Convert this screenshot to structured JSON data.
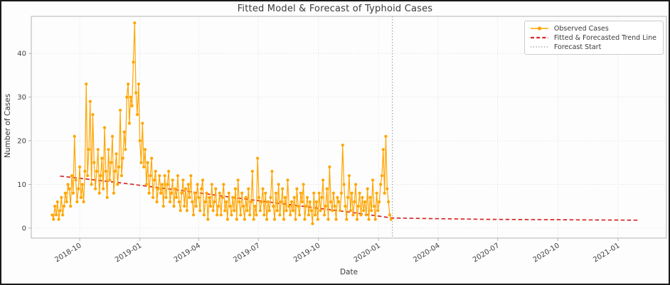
{
  "chart_data": {
    "type": "line",
    "title": "Fitted Model & Forecast of Typhoid Cases",
    "xlabel": "Date",
    "ylabel": "Number of Cases",
    "grid": "dotted",
    "legend_position": "upper right",
    "x_epoch": "2018-10-01",
    "xlim_days": [
      -74,
      897
    ],
    "ylim": [
      -2.3,
      48.5
    ],
    "y_ticks": [
      0,
      10,
      20,
      30,
      40
    ],
    "x_ticks": {
      "days": [
        0,
        92,
        182,
        273,
        365,
        457,
        548,
        639,
        731,
        823
      ],
      "labels": [
        "2018-10",
        "2019-01",
        "2019-04",
        "2019-07",
        "2019-10",
        "2020-01",
        "2020-04",
        "2020-07",
        "2020-10",
        "2021-01"
      ]
    },
    "series": [
      {
        "name": "Observed Cases",
        "kind": "line+markers",
        "color": "#FFA500",
        "start_date": "2018-08-20",
        "start_day": -42,
        "step_days": 2,
        "values": [
          3,
          2,
          5,
          3,
          6,
          2,
          4,
          7,
          3,
          5,
          8,
          6,
          10,
          9,
          5,
          12,
          8,
          21,
          11,
          6,
          9,
          14,
          7,
          10,
          6,
          13,
          33,
          12,
          18,
          29,
          10,
          26,
          15,
          9,
          13,
          18,
          8,
          12,
          16,
          9,
          23,
          13,
          7,
          18,
          11,
          15,
          21,
          8,
          13,
          17,
          10,
          14,
          27,
          12,
          16,
          22,
          18,
          30,
          33,
          24,
          30,
          28,
          38,
          47,
          31,
          26,
          33,
          20,
          15,
          24,
          14,
          18,
          10,
          15,
          8,
          12,
          16,
          7,
          11,
          13,
          6,
          9,
          12,
          8,
          10,
          5,
          12,
          7,
          10,
          13,
          6,
          8,
          11,
          5,
          9,
          7,
          12,
          6,
          4,
          8,
          11,
          5,
          9,
          4,
          10,
          7,
          12,
          6,
          3,
          8,
          5,
          10,
          7,
          4,
          9,
          11,
          3,
          6,
          8,
          2,
          7,
          5,
          10,
          4,
          6,
          9,
          3,
          5,
          8,
          3,
          7,
          10,
          4,
          6,
          2,
          8,
          5,
          3,
          7,
          4,
          9,
          2,
          11,
          6,
          3,
          8,
          5,
          2,
          7,
          4,
          9,
          3,
          6,
          13,
          2,
          5,
          3,
          16,
          7,
          4,
          6,
          9,
          3,
          8,
          2,
          6,
          4,
          7,
          13,
          5,
          2,
          8,
          4,
          10,
          3,
          6,
          9,
          2,
          7,
          4,
          11,
          5,
          3,
          6,
          4,
          7,
          2,
          9,
          5,
          3,
          8,
          6,
          10,
          2,
          5,
          7,
          3,
          6,
          4,
          1,
          8,
          3,
          6,
          2,
          8,
          4,
          7,
          11,
          3,
          5,
          9,
          2,
          14,
          6,
          4,
          8,
          5,
          2,
          7,
          6,
          4,
          8,
          19,
          10,
          5,
          2,
          7,
          12,
          4,
          8,
          3,
          6,
          10,
          2,
          5,
          8,
          3,
          7,
          4,
          6,
          3,
          9,
          2,
          7,
          4,
          11,
          5,
          2,
          8,
          4,
          6,
          10,
          12,
          18,
          8,
          21,
          9,
          6,
          3,
          2
        ]
      },
      {
        "name": "Fitted & Forecasted Trend Line",
        "kind": "dashed-line",
        "color": "#D62728",
        "points": [
          [
            -30,
            11.9
          ],
          [
            60,
            10.4
          ],
          [
            150,
            8.7
          ],
          [
            240,
            6.9
          ],
          [
            330,
            5.2
          ],
          [
            420,
            3.5
          ],
          [
            478,
            2.3
          ],
          [
            620,
            2.0
          ],
          [
            855,
            1.8
          ]
        ]
      },
      {
        "name": "Forecast Start",
        "kind": "vline",
        "color": "#8A8A8A",
        "day": 478,
        "date": "2020-01-22"
      }
    ],
    "style": {
      "grid_color": "#d4d4d4",
      "spine_color": "#b3b3b3",
      "tick_label_color": "#404040",
      "observed_color": "#FFA500",
      "trend_color": "#D62728",
      "forecast_line_color": "#8A8A8A"
    }
  }
}
